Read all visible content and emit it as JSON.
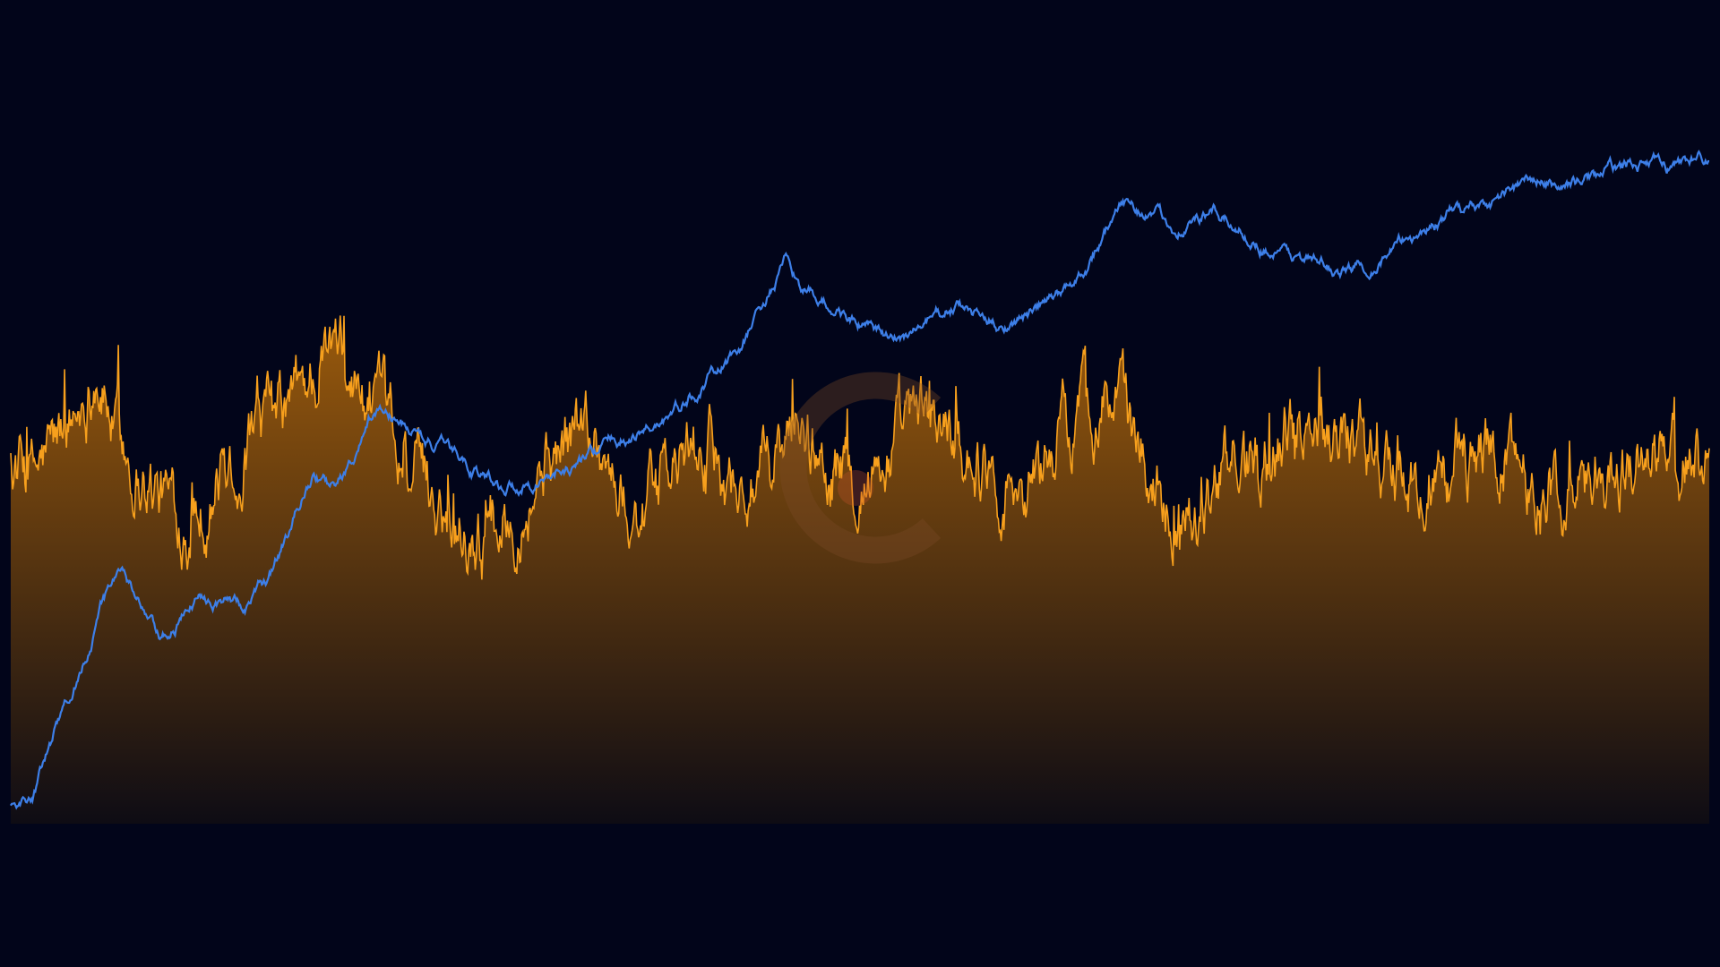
{
  "chart_data": {
    "type": "area",
    "title": "",
    "xlabel": "",
    "ylabel": "",
    "grid": false,
    "legend": "none",
    "x_count": 1800,
    "ylim_left": [
      0,
      100
    ],
    "ylim_right": [
      0,
      100
    ],
    "series": [
      {
        "kind": "area",
        "axis": "left",
        "color": "#f7a01d",
        "gradient_top": "#9a5a0c",
        "gradient_bottom": "#0e0c14",
        "profile_note_values": [
          70,
          66,
          72,
          78,
          88,
          74,
          68,
          63,
          60,
          62,
          68,
          72,
          76,
          80,
          86,
          90,
          84,
          78,
          70,
          66,
          62,
          58,
          55,
          60,
          64,
          70,
          74,
          78,
          66,
          60,
          64,
          68,
          72,
          70,
          64,
          66,
          72,
          74,
          70,
          66,
          68,
          72,
          76,
          78,
          74,
          70,
          66,
          64,
          70,
          76,
          80,
          82,
          76,
          68,
          62,
          60,
          64,
          70,
          72,
          74,
          78,
          80,
          76,
          72,
          68,
          66,
          64,
          68,
          70,
          72,
          70,
          66,
          64,
          62,
          66,
          68,
          70,
          72,
          70,
          68
        ]
      },
      {
        "kind": "line",
        "axis": "right",
        "color": "#3d7fe8",
        "profile_note_values": [
          2,
          3,
          12,
          20,
          30,
          38,
          32,
          26,
          30,
          34,
          33,
          32,
          36,
          44,
          52,
          50,
          54,
          62,
          60,
          58,
          56,
          54,
          52,
          50,
          51,
          52,
          53,
          55,
          57,
          58,
          60,
          62,
          65,
          68,
          72,
          78,
          84,
          80,
          78,
          76,
          74,
          72,
          74,
          76,
          78,
          76,
          75,
          76,
          78,
          80,
          84,
          90,
          94,
          92,
          90,
          91,
          92,
          90,
          88,
          86,
          85,
          84,
          83,
          84,
          86,
          88,
          90,
          92,
          93,
          94,
          96,
          97,
          96,
          97,
          98,
          99,
          100,
          99,
          100,
          101
        ]
      }
    ],
    "watermark": {
      "icon": "coin-logo-watermark",
      "color": "#7a4a28"
    }
  }
}
